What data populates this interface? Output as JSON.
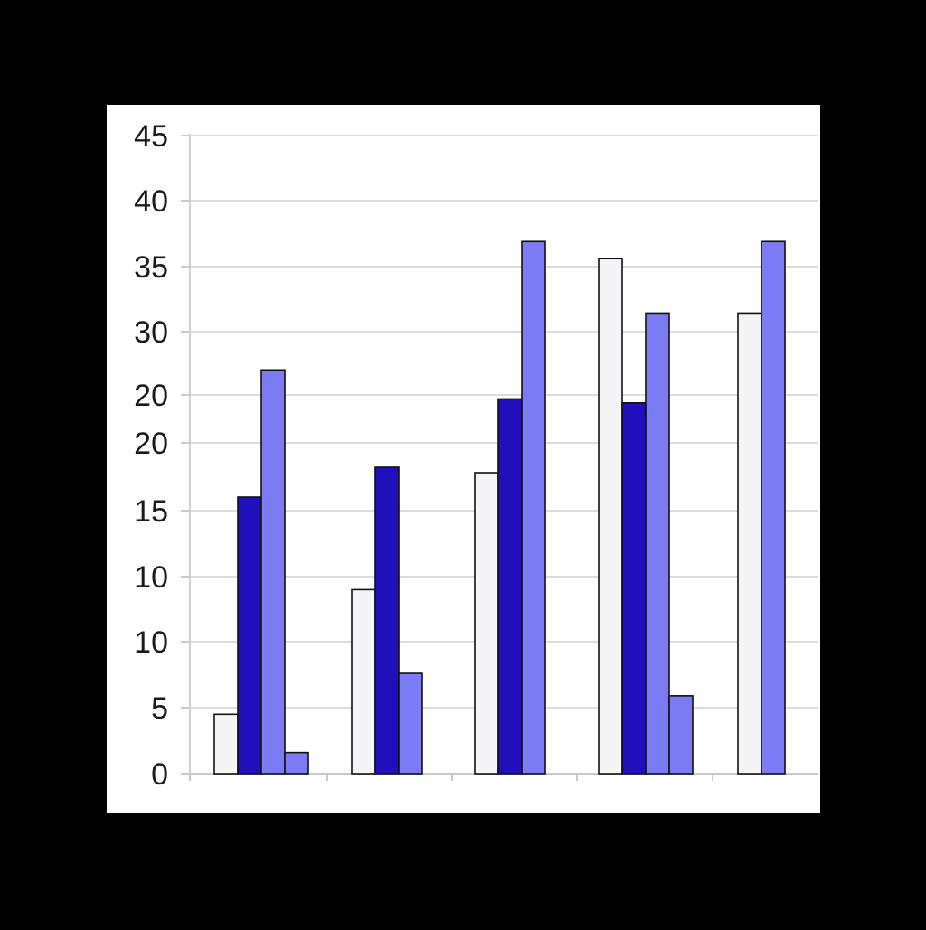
{
  "chart_data": {
    "type": "bar",
    "title": "",
    "xlabel": "",
    "ylabel": "",
    "grid": true,
    "legend": "none",
    "y_tick_labels": [
      "0",
      "5",
      "10",
      "10",
      "15",
      "20",
      "20",
      "30",
      "35",
      "40",
      "45"
    ],
    "groups": [
      {
        "bars": [
          {
            "level": 4.5,
            "color": "#f5f5f8"
          },
          {
            "level": 21.0,
            "color": "#2010bb"
          },
          {
            "level": 30.5,
            "color": "#7b7bf4"
          },
          {
            "level": 1.6,
            "color": "#7b7bf4"
          }
        ]
      },
      {
        "bars": [
          {
            "level": 14.0,
            "color": "#f5f5f8"
          },
          {
            "level": 23.2,
            "color": "#2010bb"
          },
          {
            "level": 7.6,
            "color": "#7b7bf4"
          }
        ]
      },
      {
        "bars": [
          {
            "level": 22.8,
            "color": "#f5f5f8"
          },
          {
            "level": 28.3,
            "color": "#2010bb"
          },
          {
            "level": 40.2,
            "color": "#7b7bf4"
          }
        ]
      },
      {
        "bars": [
          {
            "level": 38.9,
            "color": "#f5f5f8"
          },
          {
            "level": 28.0,
            "color": "#2010bb"
          },
          {
            "level": 34.8,
            "color": "#7b7bf4"
          },
          {
            "level": 5.9,
            "color": "#7b7bf4"
          }
        ]
      },
      {
        "bars": [
          {
            "level": 34.8,
            "color": "#f5f5f8"
          },
          {
            "level": 40.2,
            "color": "#7b7bf4"
          }
        ]
      }
    ]
  }
}
